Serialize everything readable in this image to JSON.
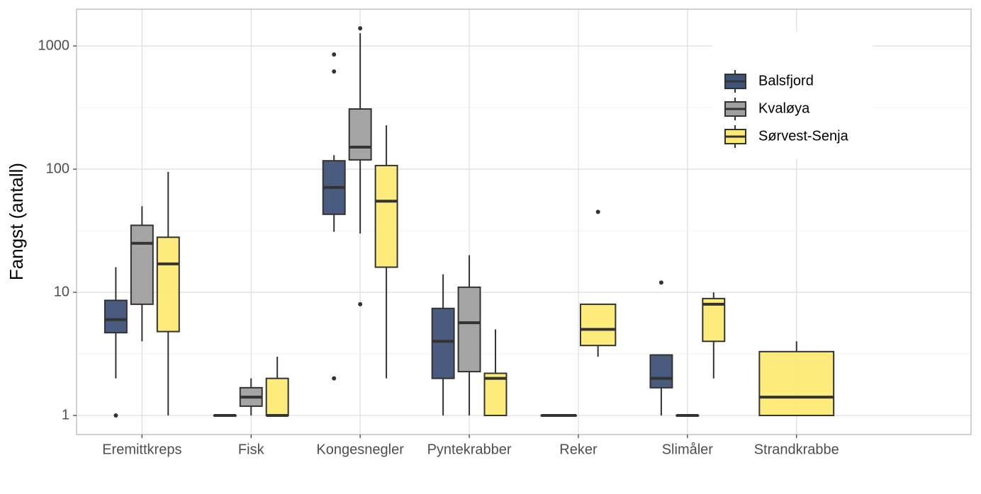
{
  "chart_data": {
    "type": "boxplot",
    "y_label": "Fangst (antall)",
    "categories": [
      "Eremittkreps",
      "Fisk",
      "Kongesnegler",
      "Pyntekrabber",
      "Reker",
      "Slimåler",
      "Strandkrabbe"
    ],
    "yscale": "log",
    "ylim": [
      0.7,
      1990
    ],
    "yticks": [
      1,
      10,
      100,
      1000
    ],
    "grid": true,
    "legend_position": "top-right",
    "series": [
      {
        "name": "Balsfjord",
        "color": "#3f5278",
        "boxes": [
          {
            "min": 2,
            "q1": 4.7,
            "median": 6,
            "q3": 8.6,
            "max": 16,
            "outliers": [
              1
            ]
          },
          {
            "min": 1,
            "q1": 1,
            "median": 1,
            "q3": 1,
            "max": 1,
            "outliers": []
          },
          {
            "min": 31,
            "q1": 43,
            "median": 71,
            "q3": 117,
            "max": 130,
            "outliers": [
              853,
              621,
              2
            ]
          },
          {
            "min": 1,
            "q1": 2,
            "median": 4,
            "q3": 7.4,
            "max": 14,
            "outliers": []
          },
          {
            "min": 1,
            "q1": 1,
            "median": 1,
            "q3": 1,
            "max": 1,
            "outliers": []
          },
          {
            "min": 1,
            "q1": 1.68,
            "median": 2,
            "q3": 3.1,
            "max": 3.1,
            "outliers": [
              12
            ]
          },
          null
        ]
      },
      {
        "name": "Kvaløya",
        "color": "#a0a0a0",
        "boxes": [
          {
            "min": 4,
            "q1": 8,
            "median": 25,
            "q3": 35,
            "max": 50,
            "outliers": []
          },
          {
            "min": 1,
            "q1": 1.19,
            "median": 1.41,
            "q3": 1.68,
            "max": 2,
            "outliers": []
          },
          {
            "min": 30,
            "q1": 119,
            "median": 151,
            "q3": 308,
            "max": 1270,
            "outliers": [
              1392,
              8
            ]
          },
          {
            "min": 1,
            "q1": 2.27,
            "median": 5.66,
            "q3": 11,
            "max": 20,
            "outliers": []
          },
          null,
          {
            "min": 1,
            "q1": 1,
            "median": 1,
            "q3": 1,
            "max": 1,
            "outliers": []
          },
          null
        ]
      },
      {
        "name": "Sørvest-Senja",
        "color": "#fdea75",
        "boxes": [
          {
            "min": 1,
            "q1": 4.8,
            "median": 17,
            "q3": 28,
            "max": 95,
            "outliers": []
          },
          {
            "min": 1,
            "q1": 1,
            "median": 1,
            "q3": 2,
            "max": 3,
            "outliers": []
          },
          {
            "min": 2,
            "q1": 16,
            "median": 55,
            "q3": 107,
            "max": 227,
            "outliers": []
          },
          {
            "min": 1,
            "q1": 1,
            "median": 2,
            "q3": 2.2,
            "max": 5,
            "outliers": []
          },
          {
            "min": 3,
            "q1": 3.7,
            "median": 5,
            "q3": 8,
            "max": 8,
            "outliers": [
              45
            ]
          },
          {
            "min": 2,
            "q1": 4,
            "median": 8,
            "q3": 8.9,
            "max": 10,
            "outliers": []
          },
          {
            "min": 1,
            "q1": 1,
            "median": 1.41,
            "q3": 3.3,
            "max": 4,
            "outliers": []
          }
        ]
      }
    ]
  }
}
